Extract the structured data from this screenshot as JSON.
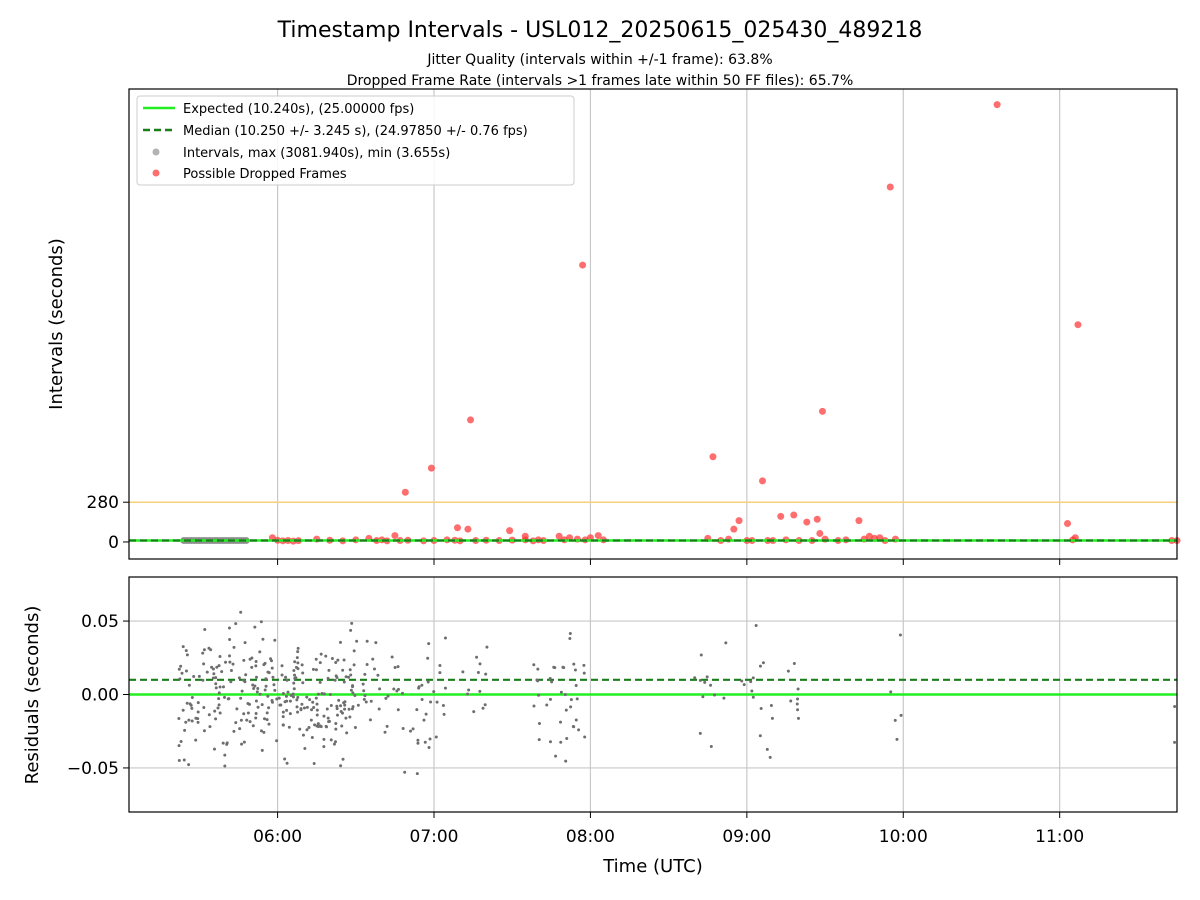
{
  "title": "Timestamp Intervals - USL012_20250615_025430_489218",
  "subtitle1": "Jitter Quality (intervals within +/-1 frame): 63.8%",
  "subtitle2": "Dropped Frame Rate (intervals >1 frames late within 50 FF files): 65.7%",
  "chart_data": [
    {
      "type": "scatter",
      "panel": "intervals",
      "ylabel": "Intervals (seconds)",
      "xlabel": "",
      "xlim": [
        "05:03",
        "11:45"
      ],
      "ylim": [
        -120,
        3190
      ],
      "yticks": [
        {
          "value": 280,
          "label": "280"
        },
        {
          "value": 0,
          "label": "0"
        }
      ],
      "grid": "x",
      "legend_position": "top-left",
      "reference_lines": [
        {
          "name": "Expected (10.240s), (25.00000 fps)",
          "value": 10.24,
          "color": "#22ee22",
          "style": "solid"
        },
        {
          "name": "Median (10.250 +/- 3.245 s), (24.97850 +/- 0.76 fps)",
          "value": 10.25,
          "color": "#1a7f1a",
          "style": "dashed"
        },
        {
          "name": "",
          "value": 280,
          "color": "#f5d27a",
          "style": "solid"
        }
      ],
      "series": [
        {
          "name": "Intervals, max (3081.940s), min (3.655s)",
          "color": "#8c8c8c",
          "band": {
            "start": "05:24",
            "end": "05:48",
            "value": 10
          }
        },
        {
          "name": "Possible Dropped Frames",
          "color": "#ff3030",
          "points": [
            {
              "x": "05:58",
              "y": 30
            },
            {
              "x": "06:00",
              "y": 12
            },
            {
              "x": "06:02",
              "y": 8
            },
            {
              "x": "06:04",
              "y": 10
            },
            {
              "x": "06:06",
              "y": 6
            },
            {
              "x": "06:08",
              "y": 9
            },
            {
              "x": "06:15",
              "y": 20
            },
            {
              "x": "06:20",
              "y": 12
            },
            {
              "x": "06:25",
              "y": 8
            },
            {
              "x": "06:30",
              "y": 15
            },
            {
              "x": "06:35",
              "y": 25
            },
            {
              "x": "06:38",
              "y": 10
            },
            {
              "x": "06:40",
              "y": 15
            },
            {
              "x": "06:42",
              "y": 8
            },
            {
              "x": "06:45",
              "y": 45
            },
            {
              "x": "06:47",
              "y": 10
            },
            {
              "x": "06:49",
              "y": 350
            },
            {
              "x": "06:50",
              "y": 12
            },
            {
              "x": "06:56",
              "y": 8
            },
            {
              "x": "07:00",
              "y": 10
            },
            {
              "x": "07:05",
              "y": 15
            },
            {
              "x": "07:08",
              "y": 12
            },
            {
              "x": "07:10",
              "y": 8
            },
            {
              "x": "07:13",
              "y": 90
            },
            {
              "x": "07:16",
              "y": 10
            },
            {
              "x": "07:20",
              "y": 12
            },
            {
              "x": "07:25",
              "y": 10
            },
            {
              "x": "07:30",
              "y": 13
            },
            {
              "x": "07:35",
              "y": 15
            },
            {
              "x": "07:38",
              "y": 8
            },
            {
              "x": "07:40",
              "y": 15
            },
            {
              "x": "07:42",
              "y": 10
            },
            {
              "x": "06:59",
              "y": 520
            },
            {
              "x": "07:09",
              "y": 100
            },
            {
              "x": "07:14",
              "y": 860
            },
            {
              "x": "07:29",
              "y": 80
            },
            {
              "x": "07:35",
              "y": 40
            },
            {
              "x": "07:48",
              "y": 40
            },
            {
              "x": "07:50",
              "y": 15
            },
            {
              "x": "07:52",
              "y": 30
            },
            {
              "x": "07:55",
              "y": 20
            },
            {
              "x": "07:58",
              "y": 15
            },
            {
              "x": "08:00",
              "y": 30
            },
            {
              "x": "08:03",
              "y": 45
            },
            {
              "x": "08:05",
              "y": 15
            },
            {
              "x": "07:57",
              "y": 1950
            },
            {
              "x": "08:45",
              "y": 25
            },
            {
              "x": "08:47",
              "y": 600
            },
            {
              "x": "08:50",
              "y": 10
            },
            {
              "x": "08:53",
              "y": 20
            },
            {
              "x": "08:55",
              "y": 90
            },
            {
              "x": "08:57",
              "y": 150
            },
            {
              "x": "09:00",
              "y": 10
            },
            {
              "x": "09:02",
              "y": 10
            },
            {
              "x": "09:06",
              "y": 430
            },
            {
              "x": "09:08",
              "y": 10
            },
            {
              "x": "09:10",
              "y": 10
            },
            {
              "x": "09:13",
              "y": 180
            },
            {
              "x": "09:15",
              "y": 15
            },
            {
              "x": "09:18",
              "y": 190
            },
            {
              "x": "09:20",
              "y": 10
            },
            {
              "x": "09:23",
              "y": 140
            },
            {
              "x": "09:25",
              "y": 10
            },
            {
              "x": "09:27",
              "y": 160
            },
            {
              "x": "09:28",
              "y": 60
            },
            {
              "x": "09:29",
              "y": 920
            },
            {
              "x": "09:30",
              "y": 20
            },
            {
              "x": "09:35",
              "y": 10
            },
            {
              "x": "09:38",
              "y": 15
            },
            {
              "x": "09:43",
              "y": 150
            },
            {
              "x": "09:45",
              "y": 20
            },
            {
              "x": "09:47",
              "y": 40
            },
            {
              "x": "09:49",
              "y": 25
            },
            {
              "x": "09:51",
              "y": 30
            },
            {
              "x": "09:53",
              "y": 10
            },
            {
              "x": "09:55",
              "y": 2500
            },
            {
              "x": "09:57",
              "y": 20
            },
            {
              "x": "10:36",
              "y": 3080
            },
            {
              "x": "11:03",
              "y": 130
            },
            {
              "x": "11:05",
              "y": 15
            },
            {
              "x": "11:06",
              "y": 30
            },
            {
              "x": "11:07",
              "y": 1530
            },
            {
              "x": "11:43",
              "y": 10
            },
            {
              "x": "11:45",
              "y": 10
            }
          ]
        }
      ]
    },
    {
      "type": "scatter",
      "panel": "residuals",
      "ylabel": "Residuals (seconds)",
      "xlabel": "Time (UTC)",
      "xlim": [
        "05:03",
        "11:45"
      ],
      "ylim": [
        -0.08,
        0.08
      ],
      "yticks": [
        {
          "value": 0.05,
          "label": "0.05"
        },
        {
          "value": 0.0,
          "label": "0.00"
        },
        {
          "value": -0.05,
          "label": "−0.05"
        }
      ],
      "xticks": [
        "06:00",
        "07:00",
        "08:00",
        "09:00",
        "10:00",
        "11:00"
      ],
      "grid": "both",
      "reference_lines": [
        {
          "name": "Expected",
          "value": 0.0,
          "color": "#22ee22",
          "style": "solid"
        },
        {
          "name": "Median",
          "value": 0.01,
          "color": "#1a7f1a",
          "style": "dashed"
        }
      ],
      "series": [
        {
          "name": "Residuals",
          "color": "#6e6e6e",
          "clusters": [
            {
              "start": "05:22",
              "end": "06:30",
              "count": 300,
              "spread": 0.03
            },
            {
              "start": "06:30",
              "end": "06:55",
              "count": 40,
              "spread": 0.03
            },
            {
              "start": "06:55",
              "end": "07:05",
              "count": 20,
              "spread": 0.03
            },
            {
              "start": "07:10",
              "end": "07:22",
              "count": 12,
              "spread": 0.03
            },
            {
              "start": "07:38",
              "end": "07:58",
              "count": 40,
              "spread": 0.03
            },
            {
              "start": "08:40",
              "end": "08:52",
              "count": 12,
              "spread": 0.03
            },
            {
              "start": "08:58",
              "end": "09:10",
              "count": 15,
              "spread": 0.03
            },
            {
              "start": "09:15",
              "end": "09:20",
              "count": 8,
              "spread": 0.03
            },
            {
              "start": "09:55",
              "end": "10:00",
              "count": 5,
              "spread": 0.03
            },
            {
              "start": "11:44",
              "end": "11:45",
              "count": 2,
              "spread": 0.03
            }
          ]
        }
      ]
    }
  ],
  "legend": [
    {
      "label": "Expected (10.240s), (25.00000 fps)",
      "icon": "solid-line",
      "color": "#22ee22"
    },
    {
      "label": "Median (10.250 +/- 3.245 s), (24.97850 +/- 0.76 fps)",
      "icon": "dashed-line",
      "color": "#1a7f1a"
    },
    {
      "label": "Intervals, max (3081.940s), min (3.655s)",
      "icon": "marker",
      "color": "#a0a0a0"
    },
    {
      "label": "Possible Dropped Frames",
      "icon": "marker",
      "color": "#ff4b4b"
    }
  ]
}
